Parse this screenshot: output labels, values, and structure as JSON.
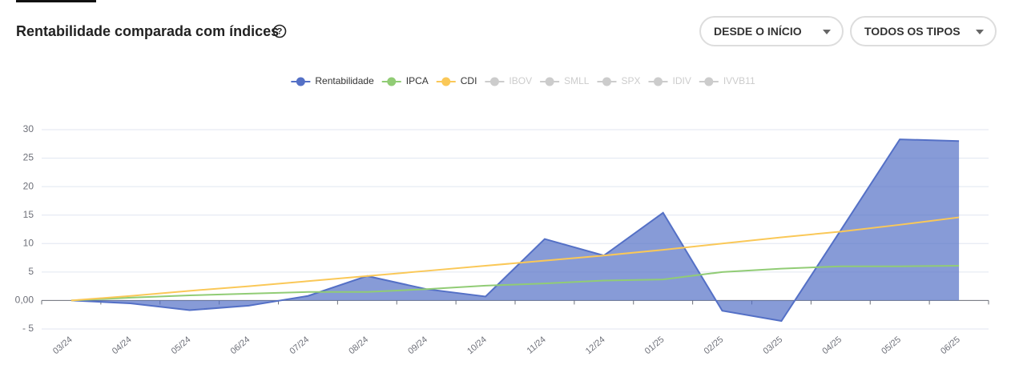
{
  "header": {
    "title": "Rentabilidade comparada com índices",
    "filters": [
      "DESDE O INÍCIO",
      "TODOS OS TIPOS"
    ]
  },
  "chart_data": {
    "type": "line",
    "categories": [
      "03/24",
      "04/24",
      "05/24",
      "06/24",
      "07/24",
      "08/24",
      "09/24",
      "10/24",
      "11/24",
      "12/24",
      "01/25",
      "02/25",
      "03/25",
      "04/25",
      "05/25",
      "06/25"
    ],
    "series": [
      {
        "name": "Rentabilidade",
        "color": "#5470c6",
        "area": true,
        "values": [
          0,
          -0.5,
          -1.7,
          -0.9,
          0.8,
          4.3,
          2.0,
          0.7,
          10.8,
          7.9,
          15.4,
          -1.8,
          -3.6,
          12.3,
          28.3,
          28.0
        ]
      },
      {
        "name": "IPCA",
        "color": "#91cc75",
        "values": [
          0,
          0.5,
          0.9,
          1.2,
          1.5,
          1.5,
          2.0,
          2.6,
          3.0,
          3.5,
          3.7,
          5.0,
          5.6,
          6.0,
          6.0,
          6.1
        ]
      },
      {
        "name": "CDI",
        "color": "#fac858",
        "values": [
          0,
          0.8,
          1.7,
          2.5,
          3.4,
          4.3,
          5.2,
          6.1,
          7.0,
          7.9,
          8.9,
          10.0,
          11.1,
          12.1,
          13.3,
          14.6
        ]
      }
    ],
    "inactive_legend": [
      "IBOV",
      "SMLL",
      "SPX",
      "IDIV",
      "IVVB11"
    ],
    "inactive_color": "#cccccc",
    "ylim": [
      -5,
      30
    ],
    "yticks": [
      {
        "value": -5,
        "label": "- 5"
      },
      {
        "value": 0,
        "label": "0,00"
      },
      5,
      10,
      15,
      20,
      25,
      30
    ],
    "grid": true
  }
}
